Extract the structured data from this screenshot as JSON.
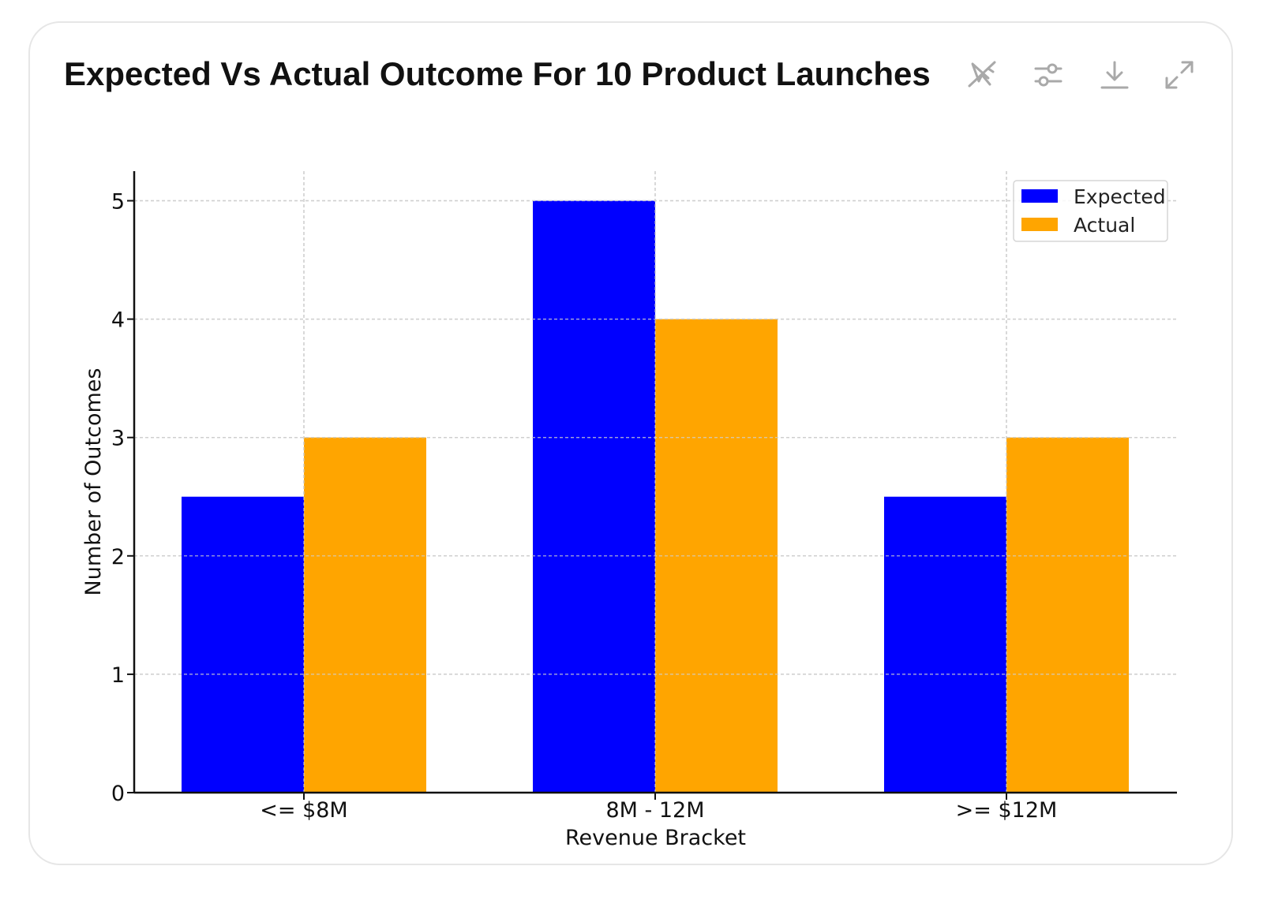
{
  "title": "Expected Vs Actual Outcome For 10 Product Launches",
  "toolbar": {
    "icons": [
      "interactive-chart-off-icon",
      "chart-settings-icon",
      "download-icon",
      "expand-icon"
    ],
    "icon_color": "#a9a9a9"
  },
  "chart_data": {
    "type": "bar",
    "categories": [
      "<= $8M",
      "8M - 12M",
      ">= $12M"
    ],
    "series": [
      {
        "name": "Expected",
        "values": [
          2.5,
          5,
          2.5
        ],
        "color": "#0000ff"
      },
      {
        "name": "Actual",
        "values": [
          3,
          4,
          3
        ],
        "color": "#ffa500"
      }
    ],
    "xlabel": "Revenue Bracket",
    "ylabel": "Number of Outcomes",
    "ylim": [
      0,
      5.25
    ],
    "yticks": [
      0,
      1,
      2,
      3,
      4,
      5
    ],
    "grid": true,
    "legend_position": "top-right"
  }
}
